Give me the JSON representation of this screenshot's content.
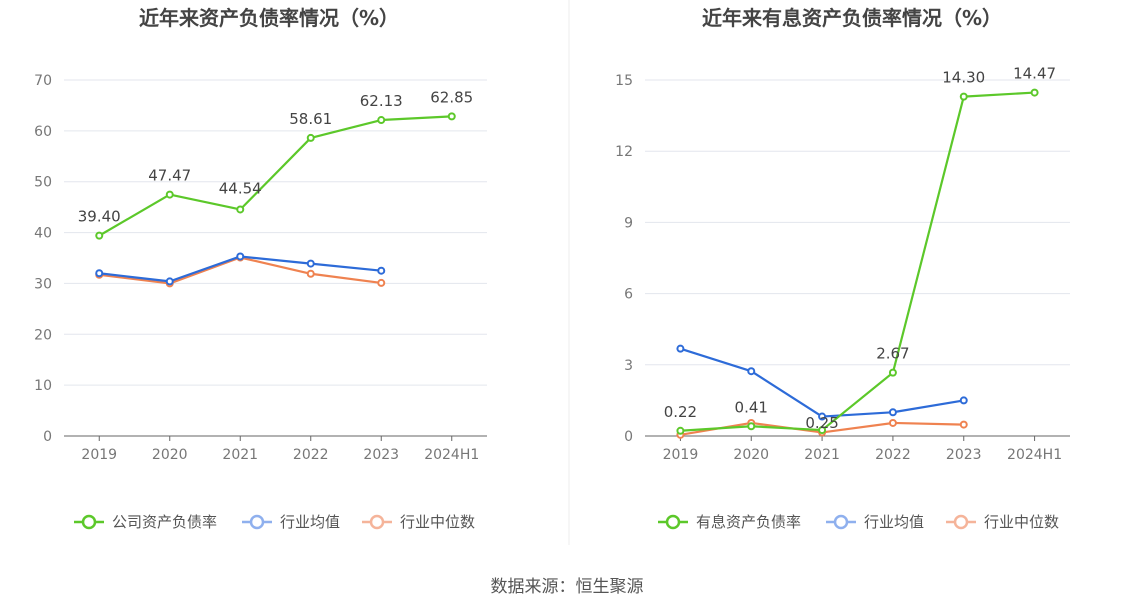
{
  "source": "数据来源：恒生聚源",
  "chart_data": [
    {
      "type": "line",
      "title": "近年来资产负债率情况（%）",
      "categories": [
        "2019",
        "2020",
        "2021",
        "2022",
        "2023",
        "2024H1"
      ],
      "ylim": [
        0,
        70
      ],
      "yticks": [
        0,
        10,
        20,
        30,
        40,
        50,
        60,
        70
      ],
      "grid": true,
      "legend_position": "bottom",
      "series": [
        {
          "name": "公司资产负债率",
          "color": "#5cc82a",
          "labeled": true,
          "values": [
            39.4,
            47.47,
            44.54,
            58.61,
            62.13,
            62.85
          ],
          "labels": [
            "39.40",
            "47.47",
            "44.54",
            "58.61",
            "62.13",
            "62.85"
          ]
        },
        {
          "name": "行业均值",
          "color": "#2d6bd8",
          "labeled": false,
          "values": [
            32.0,
            30.4,
            35.3,
            33.9,
            32.5,
            null
          ]
        },
        {
          "name": "行业中位数",
          "color": "#ef8250",
          "labeled": false,
          "values": [
            31.7,
            30.0,
            35.1,
            31.9,
            30.1,
            null
          ]
        }
      ]
    },
    {
      "type": "line",
      "title": "近年来有息资产负债率情况（%）",
      "categories": [
        "2019",
        "2020",
        "2021",
        "2022",
        "2023",
        "2024H1"
      ],
      "ylim": [
        0,
        15
      ],
      "yticks": [
        0,
        3,
        6,
        9,
        12,
        15
      ],
      "grid": true,
      "legend_position": "bottom",
      "series": [
        {
          "name": "有息资产负债率",
          "color": "#5cc82a",
          "labeled": true,
          "values": [
            0.22,
            0.41,
            0.25,
            2.67,
            14.3,
            14.47
          ],
          "labels": [
            "0.22",
            "0.41",
            "0.25",
            "2.67",
            "14.30",
            "14.47"
          ]
        },
        {
          "name": "行业均值",
          "color": "#2d6bd8",
          "labeled": false,
          "values": [
            3.68,
            2.73,
            0.82,
            1.0,
            1.5,
            null
          ]
        },
        {
          "name": "行业中位数",
          "color": "#ef8250",
          "labeled": false,
          "values": [
            0.05,
            0.55,
            0.15,
            0.55,
            0.48,
            null
          ]
        }
      ]
    }
  ]
}
